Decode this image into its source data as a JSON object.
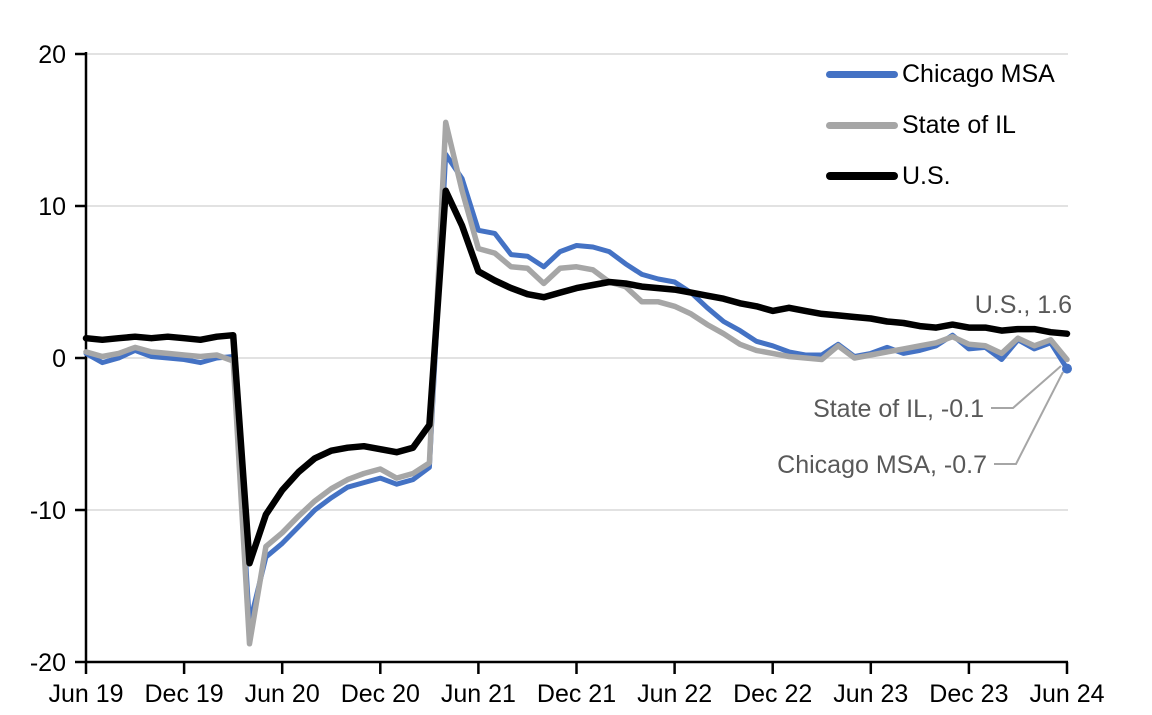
{
  "chart_data": {
    "type": "line",
    "title": "",
    "xlabel": "",
    "ylabel": "",
    "ylim": [
      -20,
      20
    ],
    "y_ticks": [
      20,
      10,
      0,
      -10,
      -20
    ],
    "y_gridlines": [
      20,
      10,
      0,
      -10
    ],
    "grid": "horizontal",
    "gridline_color": "#D9D9D9",
    "axis_color": "#000000",
    "annotation_text_color": "#595959",
    "leader_line_color": "#A6A6A6",
    "legend_position": "top-right-inside",
    "x_tick_labels": [
      "Jun 19",
      "Dec 19",
      "Jun 20",
      "Dec 20",
      "Jun 21",
      "Dec 21",
      "Jun 22",
      "Dec 22",
      "Jun 23",
      "Dec 23",
      "Jun 24"
    ],
    "months": [
      "Jun 19",
      "Jul 19",
      "Aug 19",
      "Sep 19",
      "Oct 19",
      "Nov 19",
      "Dec 19",
      "Jan 20",
      "Feb 20",
      "Mar 20",
      "Apr 20",
      "May 20",
      "Jun 20",
      "Jul 20",
      "Aug 20",
      "Sep 20",
      "Oct 20",
      "Nov 20",
      "Dec 20",
      "Jan 21",
      "Feb 21",
      "Mar 21",
      "Apr 21",
      "May 21",
      "Jun 21",
      "Jul 21",
      "Aug 21",
      "Sep 21",
      "Oct 21",
      "Nov 21",
      "Dec 21",
      "Jan 22",
      "Feb 22",
      "Mar 22",
      "Apr 22",
      "May 22",
      "Jun 22",
      "Jul 22",
      "Aug 22",
      "Sep 22",
      "Oct 22",
      "Nov 22",
      "Dec 22",
      "Jan 23",
      "Feb 23",
      "Mar 23",
      "Apr 23",
      "May 23",
      "Jun 23",
      "Jul 23",
      "Aug 23",
      "Sep 23",
      "Oct 23",
      "Nov 23",
      "Dec 23",
      "Jan 24",
      "Feb 24",
      "Mar 24",
      "Apr 24",
      "May 24",
      "Jun 24"
    ],
    "series": [
      {
        "name": "Chicago MSA",
        "color": "#4472C4",
        "stroke_width": 5,
        "values": [
          0.3,
          -0.3,
          0.0,
          0.5,
          0.1,
          0.0,
          -0.1,
          -0.3,
          0.0,
          0.1,
          -17.5,
          -13.1,
          -12.2,
          -11.1,
          -10.0,
          -9.2,
          -8.5,
          -8.2,
          -7.9,
          -8.3,
          -8.0,
          -7.2,
          13.4,
          11.8,
          8.4,
          8.2,
          6.8,
          6.7,
          6.0,
          7.0,
          7.4,
          7.3,
          7.0,
          6.2,
          5.5,
          5.2,
          5.0,
          4.3,
          3.3,
          2.4,
          1.8,
          1.1,
          0.8,
          0.4,
          0.2,
          0.2,
          0.9,
          0.1,
          0.3,
          0.7,
          0.3,
          0.5,
          0.8,
          1.5,
          0.6,
          0.7,
          -0.1,
          1.2,
          0.6,
          1.0,
          -0.7
        ]
      },
      {
        "name": "State of IL",
        "color": "#A6A6A6",
        "stroke_width": 5.5,
        "values": [
          0.4,
          0.1,
          0.3,
          0.7,
          0.4,
          0.3,
          0.2,
          0.1,
          0.2,
          -0.2,
          -18.8,
          -12.4,
          -11.5,
          -10.4,
          -9.4,
          -8.6,
          -8.0,
          -7.6,
          -7.3,
          -7.9,
          -7.6,
          -6.9,
          15.5,
          11.0,
          7.2,
          6.9,
          6.0,
          5.9,
          4.9,
          5.9,
          6.0,
          5.8,
          5.0,
          4.7,
          3.7,
          3.7,
          3.4,
          2.9,
          2.2,
          1.6,
          0.9,
          0.5,
          0.3,
          0.1,
          0.0,
          -0.1,
          0.8,
          0.0,
          0.2,
          0.4,
          0.6,
          0.8,
          1.0,
          1.4,
          0.9,
          0.8,
          0.3,
          1.3,
          0.8,
          1.2,
          -0.1
        ]
      },
      {
        "name": "U.S.",
        "color": "#000000",
        "stroke_width": 6.5,
        "values": [
          1.3,
          1.2,
          1.3,
          1.4,
          1.3,
          1.4,
          1.3,
          1.2,
          1.4,
          1.5,
          -13.5,
          -10.3,
          -8.7,
          -7.5,
          -6.6,
          -6.1,
          -5.9,
          -5.8,
          -6.0,
          -6.2,
          -5.9,
          -4.4,
          11.0,
          8.7,
          5.7,
          5.1,
          4.6,
          4.2,
          4.0,
          4.3,
          4.6,
          4.8,
          5.0,
          4.9,
          4.7,
          4.6,
          4.5,
          4.3,
          4.1,
          3.9,
          3.6,
          3.4,
          3.1,
          3.3,
          3.1,
          2.9,
          2.8,
          2.7,
          2.6,
          2.4,
          2.3,
          2.1,
          2.0,
          2.2,
          2.0,
          2.0,
          1.8,
          1.9,
          1.9,
          1.7,
          1.6
        ]
      }
    ],
    "annotations": [
      {
        "text": "U.S., 1.6",
        "series": "U.S.",
        "value": 1.6
      },
      {
        "text": "State of IL, -0.1",
        "series": "State of IL",
        "value": -0.1
      },
      {
        "text": "Chicago MSA, -0.7",
        "series": "Chicago MSA",
        "value": -0.7
      }
    ],
    "end_marker_series": "Chicago MSA"
  },
  "legend": {
    "items": [
      "Chicago MSA",
      "State of IL",
      "U.S."
    ]
  }
}
